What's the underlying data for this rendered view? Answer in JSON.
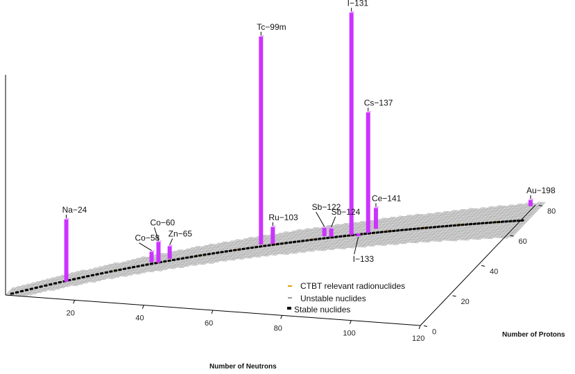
{
  "chart_data": {
    "type": "bar3d",
    "xlabel": "Number of Neutrons",
    "ylabel": "Number of Protons",
    "xticks": [
      20,
      40,
      60,
      80,
      100,
      120
    ],
    "yticks": [
      0,
      20,
      40,
      60,
      80
    ],
    "xlim": [
      0,
      120
    ],
    "ylim": [
      0,
      80
    ],
    "colors": {
      "bar": "#cc33ff",
      "stable": "#000000",
      "unstable": "#9a9a9a",
      "relevant": "#e0a000"
    },
    "legend": [
      {
        "label": "CTBT relevant radionuclides",
        "marker": "relevant"
      },
      {
        "label": "Unstable nuclides",
        "marker": "unstable"
      },
      {
        "label": "Stable nuclides",
        "marker": "stable"
      }
    ],
    "nuclides": [
      {
        "label": "Na−24",
        "neutrons": 13,
        "protons": 11,
        "height": 0.3
      },
      {
        "label": "Co−58",
        "neutrons": 31,
        "protons": 27,
        "height": 0.05
      },
      {
        "label": "Co−60",
        "neutrons": 33,
        "protons": 27,
        "height": 0.1
      },
      {
        "label": "Zn−65",
        "neutrons": 35,
        "protons": 30,
        "height": 0.06
      },
      {
        "label": "Tc−99m",
        "neutrons": 56,
        "protons": 43,
        "height": 1.0
      },
      {
        "label": "Ru−103",
        "neutrons": 59,
        "protons": 44,
        "height": 0.08
      },
      {
        "label": "Sb−122",
        "neutrons": 71,
        "protons": 51,
        "height": 0.04
      },
      {
        "label": "Sb−124",
        "neutrons": 73,
        "protons": 51,
        "height": 0.04
      },
      {
        "label": "I−131",
        "neutrons": 78,
        "protons": 53,
        "height": 1.07
      },
      {
        "label": "I−133",
        "neutrons": 80,
        "protons": 53,
        "height": 0.0
      },
      {
        "label": "Cs−137",
        "neutrons": 82,
        "protons": 55,
        "height": 0.58
      },
      {
        "label": "Ce−141",
        "neutrons": 83,
        "protons": 58,
        "height": 0.1
      },
      {
        "label": "Au−198",
        "neutrons": 119,
        "protons": 79,
        "height": 0.03
      }
    ]
  }
}
